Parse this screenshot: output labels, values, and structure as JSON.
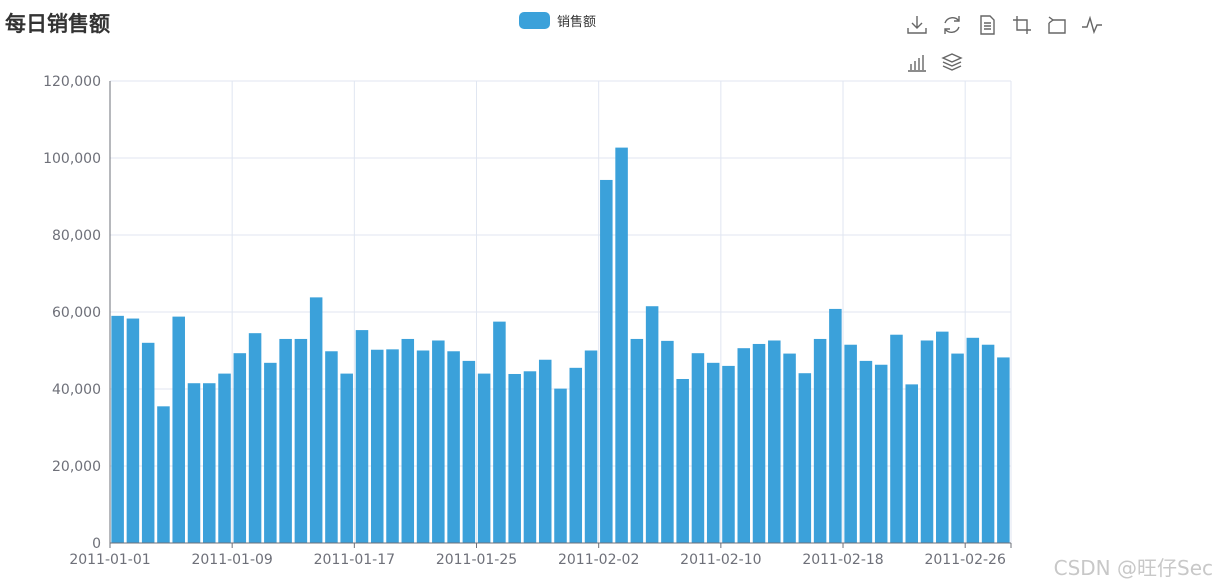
{
  "title": "每日销售额",
  "legend": {
    "label": "销售额"
  },
  "toolbox": [
    {
      "name": "download-icon"
    },
    {
      "name": "refresh-icon"
    },
    {
      "name": "data-view-icon"
    },
    {
      "name": "zoom-icon"
    },
    {
      "name": "zoom-reset-icon"
    },
    {
      "name": "line-chart-icon"
    },
    {
      "name": "bar-chart-icon"
    },
    {
      "name": "stack-icon"
    }
  ],
  "watermark": "CSDN @旺仔Sec",
  "colors": {
    "bar": "#3ba1da",
    "grid": "#e0e6f1",
    "axis": "#6e7079",
    "text": "#333333"
  },
  "chart_data": {
    "type": "bar",
    "title": "每日销售额",
    "series": [
      {
        "name": "销售额",
        "values": [
          59000,
          58300,
          52000,
          35500,
          58800,
          41500,
          41500,
          44000,
          49300,
          54500,
          46800,
          53000,
          53000,
          63800,
          49800,
          44000,
          55300,
          50200,
          50300,
          53000,
          50000,
          52600,
          49800,
          47300,
          44000,
          57500,
          43900,
          44600,
          47600,
          40100,
          45500,
          50000,
          94300,
          102700,
          53000,
          61500,
          52500,
          42600,
          49300,
          46800,
          46000,
          50600,
          51700,
          52600,
          49200,
          44100,
          53000,
          60800,
          51500,
          47300,
          46300,
          54100,
          41200,
          52600,
          54900,
          49200,
          53300,
          51500,
          48200
        ]
      }
    ],
    "x_start": "2011-01-01",
    "x_tick_labels": [
      "2011-01-01",
      "2011-01-09",
      "2011-01-17",
      "2011-01-25",
      "2011-02-02",
      "2011-02-10",
      "2011-02-18",
      "2011-02-26"
    ],
    "y_tick_labels": [
      "0",
      "20,000",
      "40,000",
      "60,000",
      "80,000",
      "100,000",
      "120,000"
    ],
    "ylim": [
      0,
      120000
    ],
    "grid": true,
    "legend_position": "top-center",
    "xlabel": "",
    "ylabel": ""
  }
}
